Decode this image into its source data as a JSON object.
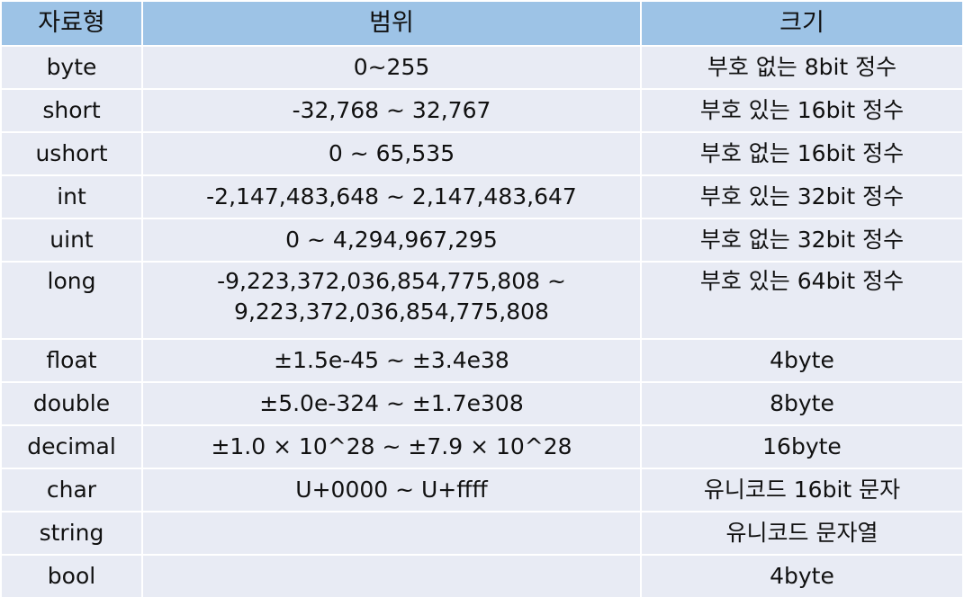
{
  "table": {
    "headers": [
      "자료형",
      "범위",
      "크기"
    ],
    "rows": [
      {
        "type": "byte",
        "range": [
          "0~255"
        ],
        "size": "부호 없는 8bit 정수"
      },
      {
        "type": "short",
        "range": [
          "-32,768 ~ 32,767"
        ],
        "size": "부호 있는 16bit 정수"
      },
      {
        "type": "ushort",
        "range": [
          "0 ~ 65,535"
        ],
        "size": "부호 없는 16bit 정수"
      },
      {
        "type": "int",
        "range": [
          "-2,147,483,648 ~ 2,147,483,647"
        ],
        "size": "부호 있는 32bit 정수"
      },
      {
        "type": "uint",
        "range": [
          "0 ~ 4,294,967,295"
        ],
        "size": "부호 없는 32bit 정수"
      },
      {
        "type": "long",
        "range": [
          "-9,223,372,036,854,775,808 ~",
          "9,223,372,036,854,775,808"
        ],
        "size": "부호 있는 64bit 정수"
      },
      {
        "type": "float",
        "range": [
          "±1.5e-45 ~ ±3.4e38"
        ],
        "size": "4byte"
      },
      {
        "type": "double",
        "range": [
          "±5.0e-324 ~ ±1.7e308"
        ],
        "size": "8byte"
      },
      {
        "type": "decimal",
        "range": [
          "±1.0 × 10^28 ~ ±7.9 × 10^28"
        ],
        "size": "16byte"
      },
      {
        "type": "char",
        "range": [
          "U+0000 ~ U+ffff"
        ],
        "size": "유니코드 16bit 문자"
      },
      {
        "type": "string",
        "range": [
          ""
        ],
        "size": "유니코드 문자열"
      },
      {
        "type": "bool",
        "range": [
          ""
        ],
        "size": "4byte"
      }
    ]
  },
  "colors": {
    "header_bg": "#9dc3e6",
    "cell_bg": "#e8ebf4",
    "border": "#ffffff",
    "text": "#111111"
  }
}
